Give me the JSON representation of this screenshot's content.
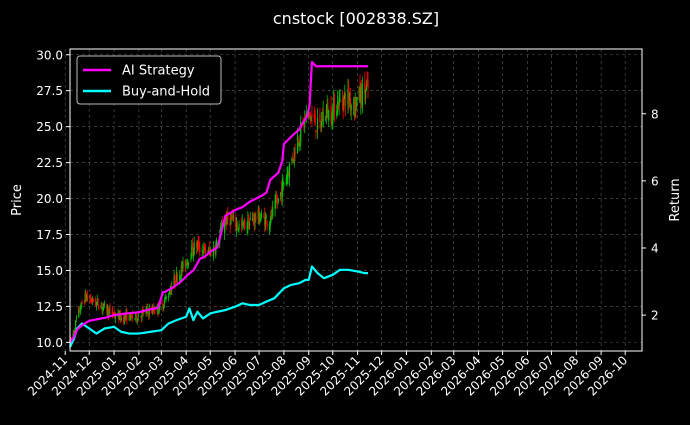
{
  "chart_data": {
    "type": "line",
    "title": "cnstock [002838.SZ]",
    "ylabel_left": "Price",
    "ylabel_right": "Return",
    "left_axis": {
      "ylim": [
        9.4,
        30.4
      ],
      "ticks": [
        10.0,
        12.5,
        15.0,
        17.5,
        20.0,
        22.5,
        25.0,
        27.5,
        30.0
      ],
      "tick_labels": [
        "10.0",
        "12.5",
        "15.0",
        "17.5",
        "20.0",
        "22.5",
        "25.0",
        "27.5",
        "30.0"
      ]
    },
    "right_axis": {
      "ylim": [
        0.93,
        9.93
      ],
      "ticks": [
        2,
        4,
        6,
        8
      ],
      "tick_labels": [
        "2",
        "4",
        "6",
        "8"
      ]
    },
    "x_axis": {
      "xlim": [
        "2024-11-07",
        "2026-10-22"
      ],
      "tick_dates": [
        "2024-11-01",
        "2024-12-01",
        "2025-01-01",
        "2025-02-01",
        "2025-03-01",
        "2025-04-01",
        "2025-05-01",
        "2025-06-01",
        "2025-07-01",
        "2025-08-01",
        "2025-09-01",
        "2025-10-01",
        "2025-11-01",
        "2025-12-01",
        "2026-01-01",
        "2026-02-01",
        "2026-03-01",
        "2026-04-01",
        "2026-05-01",
        "2026-06-01",
        "2026-07-01",
        "2026-08-01",
        "2026-09-01",
        "2026-10-01"
      ],
      "tick_labels": [
        "2024-11",
        "2024-12",
        "2025-01",
        "2025-02",
        "2025-03",
        "2025-04",
        "2025-05",
        "2025-06",
        "2025-07",
        "2025-08",
        "2025-09",
        "2025-10",
        "2025-11",
        "2025-12",
        "2026-01",
        "2026-02",
        "2026-03",
        "2026-04",
        "2026-05",
        "2026-06",
        "2026-07",
        "2026-08",
        "2026-09",
        "2026-10"
      ]
    },
    "grid": true,
    "legend": {
      "position": "top-left",
      "entries": [
        {
          "label": "AI Strategy",
          "color": "#ff00ff"
        },
        {
          "label": "Buy-and-Hold",
          "color": "#00ffff"
        }
      ]
    },
    "candles": {
      "up_color": "#00c000",
      "down_color": "#ff0000",
      "anchor_dates": [
        "2024-11-07",
        "2024-11-12",
        "2024-11-16",
        "2024-11-20",
        "2024-11-26",
        "2024-12-01",
        "2024-12-08",
        "2024-12-15",
        "2024-12-22",
        "2024-12-29",
        "2025-01-05",
        "2025-01-12",
        "2025-01-19",
        "2025-01-26",
        "2025-02-02",
        "2025-02-09",
        "2025-02-16",
        "2025-02-23",
        "2025-03-02",
        "2025-03-09",
        "2025-03-16",
        "2025-03-23",
        "2025-03-30",
        "2025-04-06",
        "2025-04-13",
        "2025-04-20",
        "2025-04-27",
        "2025-05-04",
        "2025-05-11",
        "2025-05-18",
        "2025-05-25",
        "2025-06-01",
        "2025-06-08",
        "2025-06-15",
        "2025-06-22",
        "2025-06-29",
        "2025-07-06",
        "2025-07-13",
        "2025-07-20",
        "2025-07-27",
        "2025-08-03",
        "2025-08-10",
        "2025-08-17",
        "2025-08-24",
        "2025-08-31",
        "2025-09-07",
        "2025-09-14",
        "2025-09-21",
        "2025-09-28",
        "2025-10-05",
        "2025-10-12",
        "2025-10-19",
        "2025-10-26",
        "2025-11-02",
        "2025-11-09",
        "2025-11-14"
      ],
      "anchor_closes": [
        10.0,
        10.8,
        11.8,
        12.4,
        13.2,
        13.0,
        12.8,
        12.6,
        12.3,
        12.0,
        11.8,
        11.7,
        11.8,
        11.7,
        11.9,
        12.1,
        12.2,
        12.3,
        12.6,
        13.3,
        14.2,
        14.8,
        15.4,
        16.2,
        16.8,
        16.5,
        16.2,
        16.4,
        17.0,
        18.4,
        18.6,
        18.3,
        18.0,
        18.2,
        18.5,
        18.8,
        18.6,
        18.4,
        19.2,
        20.2,
        21.5,
        22.5,
        24.0,
        25.0,
        26.0,
        25.4,
        24.8,
        26.2,
        25.8,
        26.6,
        26.8,
        27.2,
        26.5,
        27.0,
        27.5,
        27.6
      ]
    },
    "series": [
      {
        "name": "AI Strategy",
        "color": "#ff00ff",
        "axis": "left",
        "dates": [
          "2024-11-07",
          "2024-11-12",
          "2024-11-16",
          "2024-11-20",
          "2024-11-25",
          "2024-12-01",
          "2024-12-10",
          "2024-12-20",
          "2025-01-01",
          "2025-01-15",
          "2025-02-01",
          "2025-02-15",
          "2025-02-25",
          "2025-03-03",
          "2025-03-05",
          "2025-03-15",
          "2025-03-25",
          "2025-04-03",
          "2025-04-10",
          "2025-04-18",
          "2025-04-25",
          "2025-05-01",
          "2025-05-10",
          "2025-05-20",
          "2025-06-01",
          "2025-06-10",
          "2025-06-20",
          "2025-07-01",
          "2025-07-10",
          "2025-07-15",
          "2025-07-25",
          "2025-07-30",
          "2025-08-01",
          "2025-08-10",
          "2025-08-20",
          "2025-08-25",
          "2025-08-30",
          "2025-09-02",
          "2025-09-05",
          "2025-09-10",
          "2025-09-20",
          "2025-10-01",
          "2025-10-10",
          "2025-10-20",
          "2025-11-01",
          "2025-11-14"
        ],
        "values": [
          10.0,
          10.4,
          10.9,
          11.1,
          11.3,
          11.5,
          11.6,
          11.7,
          11.9,
          12.0,
          12.1,
          12.3,
          12.4,
          13.5,
          13.5,
          13.8,
          14.2,
          14.7,
          15.0,
          15.8,
          16.0,
          16.3,
          16.6,
          18.8,
          19.2,
          19.4,
          19.8,
          20.1,
          20.4,
          21.3,
          21.8,
          22.6,
          23.8,
          24.3,
          24.8,
          25.3,
          25.7,
          26.5,
          29.5,
          29.2,
          29.2,
          29.2,
          29.2,
          29.2,
          29.2,
          29.2
        ]
      },
      {
        "name": "Buy-and-Hold",
        "color": "#00ffff",
        "axis": "right",
        "dates": [
          "2024-11-07",
          "2024-11-12",
          "2024-11-16",
          "2024-11-22",
          "2024-12-01",
          "2024-12-10",
          "2024-12-20",
          "2025-01-01",
          "2025-01-10",
          "2025-01-20",
          "2025-02-01",
          "2025-02-15",
          "2025-03-01",
          "2025-03-10",
          "2025-03-20",
          "2025-04-01",
          "2025-04-05",
          "2025-04-10",
          "2025-04-15",
          "2025-04-22",
          "2025-05-01",
          "2025-05-10",
          "2025-05-20",
          "2025-06-01",
          "2025-06-10",
          "2025-06-20",
          "2025-07-01",
          "2025-07-10",
          "2025-07-20",
          "2025-08-01",
          "2025-08-10",
          "2025-08-20",
          "2025-08-28",
          "2025-09-01",
          "2025-09-05",
          "2025-09-12",
          "2025-09-20",
          "2025-10-01",
          "2025-10-10",
          "2025-10-20",
          "2025-11-01",
          "2025-11-10",
          "2025-11-14"
        ],
        "values": [
          1.05,
          1.3,
          1.6,
          1.75,
          1.6,
          1.45,
          1.6,
          1.65,
          1.5,
          1.45,
          1.45,
          1.5,
          1.55,
          1.75,
          1.85,
          1.95,
          2.2,
          1.85,
          2.1,
          1.9,
          2.05,
          2.1,
          2.15,
          2.25,
          2.35,
          2.3,
          2.3,
          2.4,
          2.5,
          2.8,
          2.9,
          2.95,
          3.05,
          3.05,
          3.45,
          3.25,
          3.1,
          3.2,
          3.35,
          3.35,
          3.3,
          3.25,
          3.25
        ]
      }
    ]
  }
}
